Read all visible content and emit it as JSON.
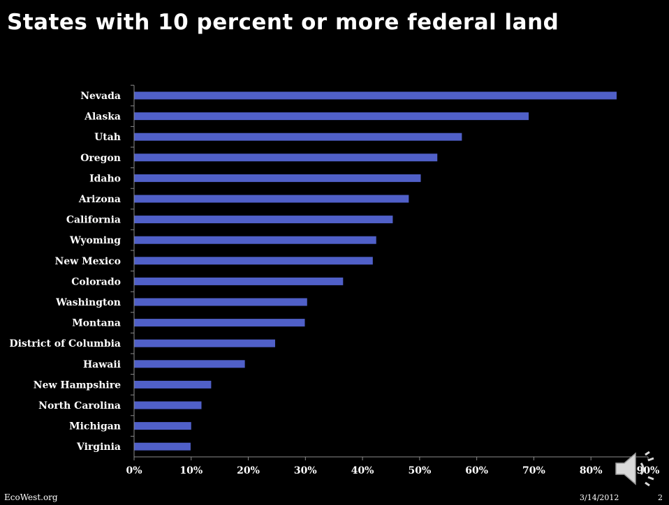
{
  "slide": {
    "title": "States with 10 percent or more federal land",
    "footer_left": "EcoWest.org",
    "footer_date": "3/14/2012",
    "page_number": "2",
    "audio_icon": "speaker-icon"
  },
  "colors": {
    "background": "#000000",
    "bar": "#5060c8",
    "text": "#ffffff",
    "axis": "#8c8c8c"
  },
  "chart_data": {
    "type": "bar",
    "orientation": "horizontal",
    "categories": [
      "Nevada",
      "Alaska",
      "Utah",
      "Oregon",
      "Idaho",
      "Arizona",
      "California",
      "Wyoming",
      "New Mexico",
      "Colorado",
      "Washington",
      "Montana",
      "District of Columbia",
      "Hawaii",
      "New Hampshire",
      "North Carolina",
      "Michigan",
      "Virginia"
    ],
    "values": [
      84.5,
      69.1,
      57.4,
      53.1,
      50.2,
      48.1,
      45.3,
      42.4,
      41.8,
      36.6,
      30.3,
      29.9,
      24.7,
      19.4,
      13.5,
      11.8,
      10.0,
      9.9
    ],
    "xlim": [
      0,
      90
    ],
    "xticks": [
      0,
      10,
      20,
      30,
      40,
      50,
      60,
      70,
      80,
      90
    ],
    "tick_labels": [
      "0%",
      "10%",
      "20%",
      "30%",
      "40%",
      "50%",
      "60%",
      "70%",
      "80%",
      "90%"
    ],
    "grid": false,
    "legend": "none"
  }
}
